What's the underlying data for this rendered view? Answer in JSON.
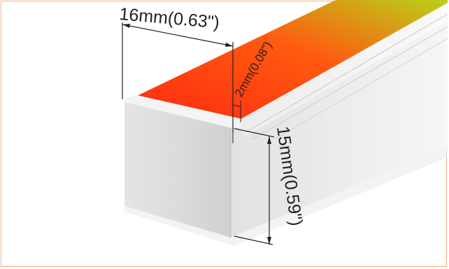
{
  "dimensions": {
    "width_label": "16mm(0.63\")",
    "groove_label": "2mm(0.08\")",
    "height_label": "15mm(0.59\")"
  },
  "colors": {
    "frame_border": "#f1b08a",
    "gradient_start": "#ff2a12",
    "gradient_mid": "#ff5a10",
    "gradient_end": "#b8d21a",
    "profile_front": "#d9d9d9",
    "profile_side": "#eeeeee",
    "dimension_line": "#222222"
  }
}
